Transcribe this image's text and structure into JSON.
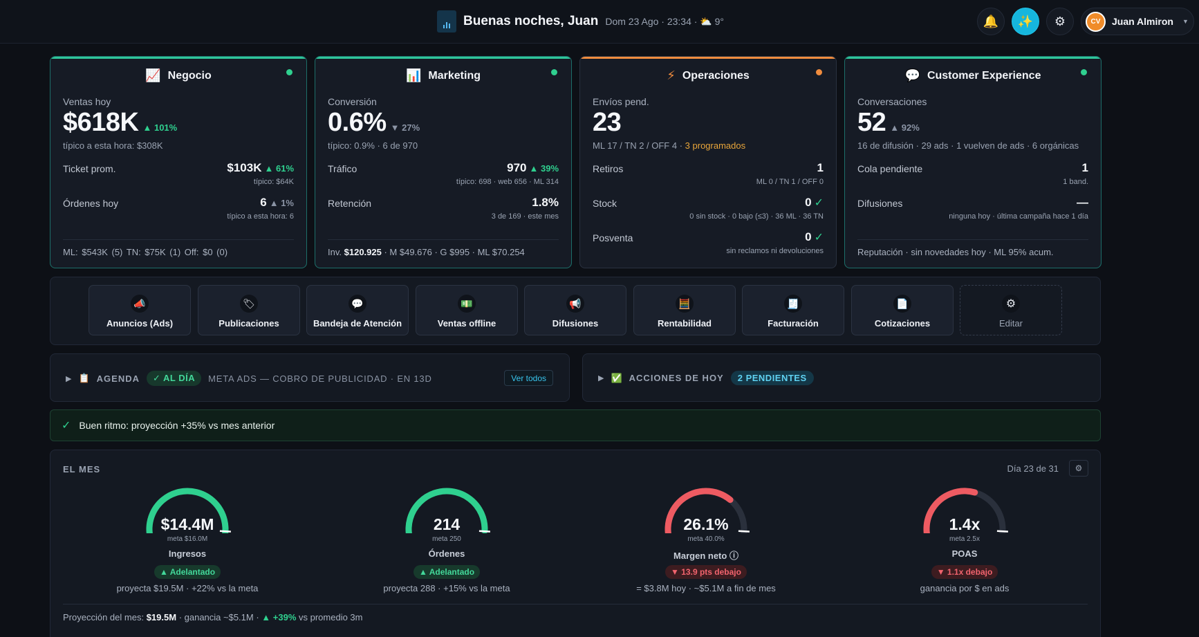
{
  "header": {
    "greeting": "Buenas noches, Juan",
    "datetime": "Dom 23 Ago · 23:34 ·",
    "weather_icon": "partly-cloudy-icon",
    "temperature": "9°",
    "user_name": "Juan Almiron",
    "avatar_initials": "CV",
    "ai_color": "#16b6dd"
  },
  "cards": [
    {
      "title": "Negocio",
      "icon": "chart-up-icon",
      "status": "good",
      "main_label": "Ventas hoy",
      "main_value": "$618K",
      "main_delta": "▲ 101%",
      "sub": "típico a esta hora: $308K",
      "rows": [
        {
          "label": "Ticket prom.",
          "value": "$103K",
          "delta": "▲ 61%",
          "detail": "típico: $64K"
        },
        {
          "label": "Órdenes hoy",
          "value": "6",
          "delta": "▲ 1%",
          "detail": "típico a esta hora: 6"
        }
      ],
      "footer": "ML: $543K (5)    TN: $75K (1)    Off: $0 (0)"
    },
    {
      "title": "Marketing",
      "icon": "bar-chart-icon",
      "status": "good",
      "main_label": "Conversión",
      "main_value": "0.6%",
      "main_delta": "▼ 27%",
      "sub": "típico: 0.9% · 6 de 970",
      "rows": [
        {
          "label": "Tráfico",
          "value": "970",
          "delta": "▲ 39%",
          "detail": "típico: 698 · web 656 · ML 314"
        },
        {
          "label": "Retención",
          "value": "1.8%",
          "delta": "",
          "detail": "3 de 169 · este mes"
        }
      ],
      "footer_prefix": "Inv.",
      "footer_bold": "$120.925",
      "footer_rest": "· M $49.676 · G $995 · ML $70.254"
    },
    {
      "title": "Operaciones",
      "icon": "lightning-icon",
      "status": "warn",
      "main_label": "Envíos pend.",
      "main_value": "23",
      "sub": "ML 17 / TN 2 / OFF 4 ·",
      "sub_highlight": "3 programados",
      "rows": [
        {
          "label": "Retiros",
          "value": "1",
          "detail": "ML 0 / TN 1 / OFF 0"
        },
        {
          "label": "Stock",
          "value": "0",
          "check": "✓",
          "detail": "0 sin stock · 0 bajo (≤3) · 36 ML · 36 TN"
        },
        {
          "label": "Posventa",
          "value": "0",
          "check": "✓",
          "detail": "sin reclamos ni devoluciones"
        }
      ]
    },
    {
      "title": "Customer Experience",
      "icon": "speech-bubble-icon",
      "status": "good",
      "main_label": "Conversaciones",
      "main_value": "52",
      "main_delta": "▲ 92%",
      "sub": "16 de difusión · 29 ads · 1 vuelven de ads · 6 orgánicas",
      "rows": [
        {
          "label": "Cola pendiente",
          "value": "1",
          "detail": "1 band."
        },
        {
          "label": "Difusiones",
          "value": "—",
          "detail": "ninguna hoy · última campaña hace 1 día"
        }
      ],
      "footer": "Reputación · sin novedades hoy · ML 95% acum."
    }
  ],
  "shortcuts": [
    {
      "label": "Anuncios (Ads)",
      "icon": "megaphone-icon"
    },
    {
      "label": "Publicaciones",
      "icon": "tag-icon"
    },
    {
      "label": "Bandeja de Atención",
      "icon": "chat-bubble-icon"
    },
    {
      "label": "Ventas offline",
      "icon": "money-icon"
    },
    {
      "label": "Difusiones",
      "icon": "loudspeaker-icon"
    },
    {
      "label": "Rentabilidad",
      "icon": "abacus-icon"
    },
    {
      "label": "Facturación",
      "icon": "receipt-icon"
    },
    {
      "label": "Cotizaciones",
      "icon": "document-icon"
    },
    {
      "label": "Editar",
      "icon": "gear-icon"
    }
  ],
  "agenda": {
    "label": "AGENDA",
    "badge": "✓ AL DÍA",
    "note": "META ADS — COBRO DE PUBLICIDAD · EN 13D",
    "button": "Ver todos"
  },
  "acciones": {
    "label": "ACCIONES DE HOY",
    "badge": "2 PENDIENTES"
  },
  "status_strip": {
    "text": "Buen ritmo: proyección +35% vs mes anterior"
  },
  "month": {
    "title": "EL MES",
    "day": "Día 23 de 31",
    "gauges": [
      {
        "value": "$14.4M",
        "meta": "meta $16.0M",
        "label": "Ingresos",
        "badge": "▲ Adelantado",
        "status": "good",
        "projection": "proyecta $19.5M · +22% vs la meta",
        "fill": 0.9,
        "color": "#2fd08f"
      },
      {
        "value": "214",
        "meta": "meta 250",
        "label": "Órdenes",
        "badge": "▲ Adelantado",
        "status": "good",
        "projection": "proyecta 288 · +15% vs la meta",
        "fill": 0.856,
        "color": "#2fd08f"
      },
      {
        "value": "26.1%",
        "meta": "meta 40.0%",
        "label": "Margen neto ⓘ",
        "badge": "▼ 13.9 pts debajo",
        "status": "bad",
        "projection": "= $3.8M hoy · ~$5.1M a fin de mes",
        "fill": 0.653,
        "color": "#ee5b62"
      },
      {
        "value": "1.4x",
        "meta": "meta 2.5x",
        "label": "POAS",
        "badge": "▼ 1.1x debajo",
        "status": "bad",
        "projection": "ganancia por $ en ads",
        "fill": 0.56,
        "color": "#ee5b62"
      }
    ],
    "footer_prefix": "Proyección del mes:",
    "footer_value": "$19.5M",
    "footer_mid": "· ganancia ~$5.1M ·",
    "footer_delta": "▲ +39%",
    "footer_suffix": "vs promedio 3m"
  }
}
